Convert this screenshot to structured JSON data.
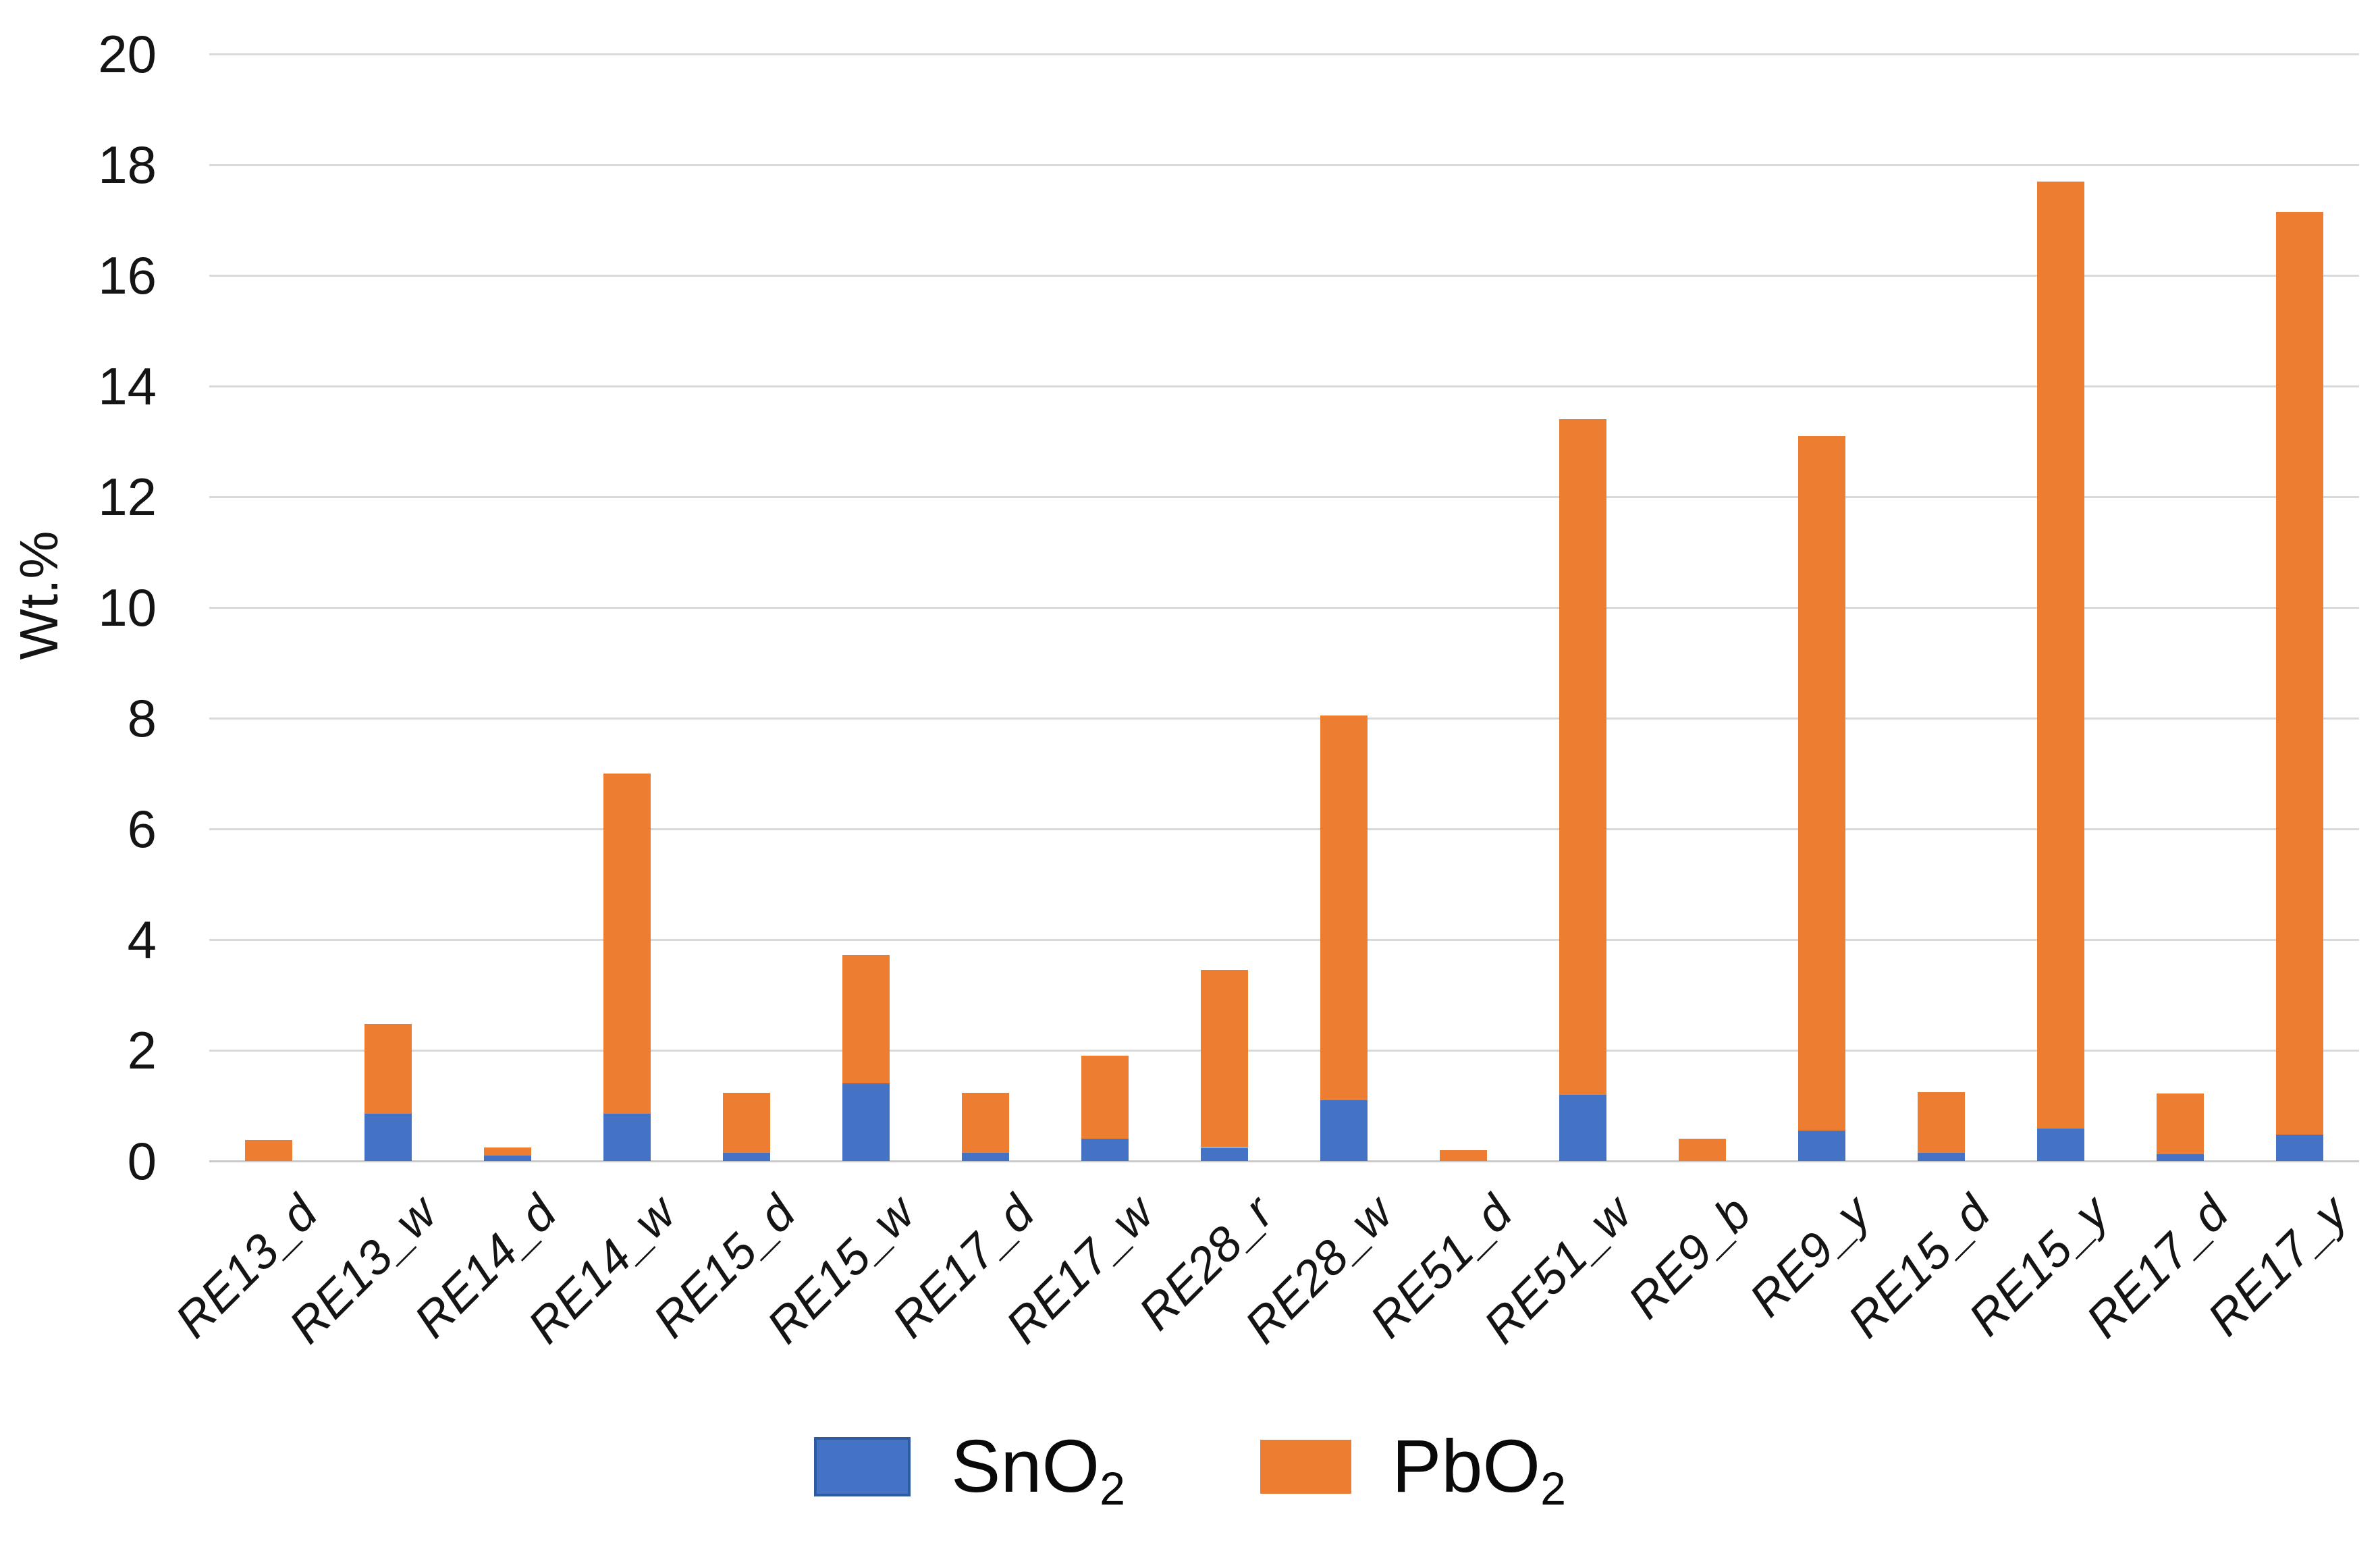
{
  "chart_data": {
    "type": "bar",
    "stacked": true,
    "title": "",
    "xlabel": "",
    "ylabel": "Wt.%",
    "ylim": [
      0,
      20
    ],
    "ytick_interval": 2,
    "ytick_labels": [
      "0",
      "2",
      "4",
      "6",
      "8",
      "10",
      "12",
      "14",
      "16",
      "18",
      "20"
    ],
    "grid": true,
    "legend_position": "bottom-center",
    "categories": [
      "RE13_d",
      "RE13_w",
      "RE14_d",
      "RE14_w",
      "RE15_d",
      "RE15_w",
      "RE17_d",
      "RE17_w",
      "RE28_r",
      "RE28_w",
      "RE51_d",
      "RE51_w",
      "RE9_b",
      "RE9_y",
      "RE15_d",
      "RE15_y",
      "RE17_d",
      "RE17_y"
    ],
    "series": [
      {
        "name": "SnO2",
        "color": "#4472C4",
        "values": [
          0,
          0.85,
          0.1,
          0.85,
          0.15,
          1.4,
          0.15,
          0.4,
          0.25,
          1.1,
          0,
          1.2,
          0,
          0.55,
          0.15,
          0.58,
          0.12,
          0.48
        ]
      },
      {
        "name": "PbO2",
        "color": "#ED7D31",
        "values": [
          0.38,
          1.62,
          0.15,
          6.15,
          1.08,
          2.32,
          1.08,
          1.5,
          3.2,
          6.95,
          0.2,
          12.2,
          0.4,
          12.55,
          1.1,
          17.12,
          1.1,
          16.67
        ]
      }
    ],
    "totals": [
      0.38,
      2.47,
      0.25,
      7.0,
      1.23,
      3.72,
      1.23,
      1.9,
      3.45,
      8.05,
      0.2,
      13.4,
      0.4,
      13.1,
      1.25,
      17.7,
      1.22,
      17.15
    ]
  },
  "legend": {
    "items": [
      {
        "base": "SnO",
        "sub": "2"
      },
      {
        "base": "PbO",
        "sub": "2"
      }
    ]
  },
  "colors": {
    "sno2_fill": "#4472C4",
    "sno2_border": "#2E5B9F",
    "pbo2_fill": "#ED7D31",
    "gridline": "#D9D9D9",
    "baseline": "#C9C9C9",
    "text": "#141414"
  }
}
